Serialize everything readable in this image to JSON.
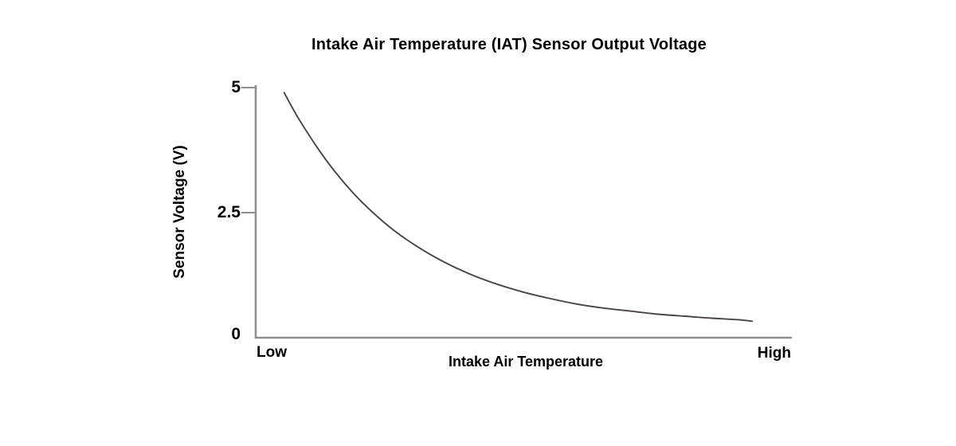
{
  "chart_data": {
    "type": "line",
    "title": "Intake Air Temperature (IAT) Sensor Output Voltage",
    "xlabel": "Intake Air Temperature",
    "ylabel": "Sensor Voltage (V)",
    "ylim": [
      0,
      5
    ],
    "yticks": [
      {
        "value": 0,
        "label": "0"
      },
      {
        "value": 2.5,
        "label": "2.5"
      },
      {
        "value": 5,
        "label": "5"
      }
    ],
    "xtick_labels": [
      "Low",
      "High"
    ],
    "x_units": "normalized 0-1 across axis (Low to High)",
    "grid": false,
    "legend": null,
    "series": [
      {
        "name": "IAT sensor output voltage",
        "description": "Voltage falls non-linearly (exponential decay) as intake air temperature rises, from about 4.9 V at low temperature to about 0.33 V at high temperature",
        "points": [
          [
            0.053,
            4.9
          ],
          [
            0.08,
            4.38
          ],
          [
            0.12,
            3.72
          ],
          [
            0.16,
            3.16
          ],
          [
            0.2,
            2.69
          ],
          [
            0.25,
            2.21
          ],
          [
            0.3,
            1.83
          ],
          [
            0.35,
            1.52
          ],
          [
            0.4,
            1.27
          ],
          [
            0.45,
            1.07
          ],
          [
            0.5,
            0.91
          ],
          [
            0.55,
            0.78
          ],
          [
            0.6,
            0.67
          ],
          [
            0.65,
            0.59
          ],
          [
            0.7,
            0.53
          ],
          [
            0.75,
            0.47
          ],
          [
            0.8,
            0.43
          ],
          [
            0.85,
            0.39
          ],
          [
            0.9,
            0.36
          ],
          [
            0.926,
            0.33
          ]
        ]
      }
    ],
    "colors": {
      "curve": "#4a4444",
      "axis": "#8f8f8f",
      "text": "#000000",
      "background": "#ffffff"
    }
  }
}
